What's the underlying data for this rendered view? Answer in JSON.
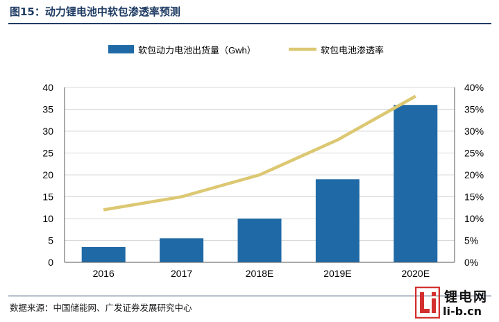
{
  "header": {
    "title": "图15：动力锂电池中软包渗透率预测"
  },
  "footer": {
    "source": "数据来源：中国储能网、广发证券发展研究中心"
  },
  "watermark": {
    "name": "锂电网",
    "url": "li-b.cn"
  },
  "colors": {
    "bar": "#1f6aa6",
    "line": "#dcc873",
    "title": "#1f3b63",
    "axis": "#555555"
  },
  "chart_data": {
    "type": "bar",
    "title": "",
    "categories": [
      "2016",
      "2017",
      "2018E",
      "2019E",
      "2020E"
    ],
    "series": [
      {
        "name": "软包动力电池出货量（Gwh）",
        "type": "bar",
        "axis": "left",
        "values": [
          3.5,
          5.5,
          10,
          19,
          36
        ]
      },
      {
        "name": "软包电池渗透率",
        "type": "line",
        "axis": "right",
        "values": [
          0.12,
          0.15,
          0.2,
          0.28,
          0.38
        ]
      }
    ],
    "y_left": {
      "range": [
        0,
        40
      ],
      "ticks": [
        "0",
        "5",
        "10",
        "15",
        "20",
        "25",
        "30",
        "35",
        "40"
      ]
    },
    "y_right": {
      "range": [
        0,
        0.4
      ],
      "ticks": [
        "0%",
        "5%",
        "10%",
        "15%",
        "20%",
        "25%",
        "30%",
        "35%",
        "40%"
      ]
    },
    "grid": true,
    "legend": "top"
  }
}
